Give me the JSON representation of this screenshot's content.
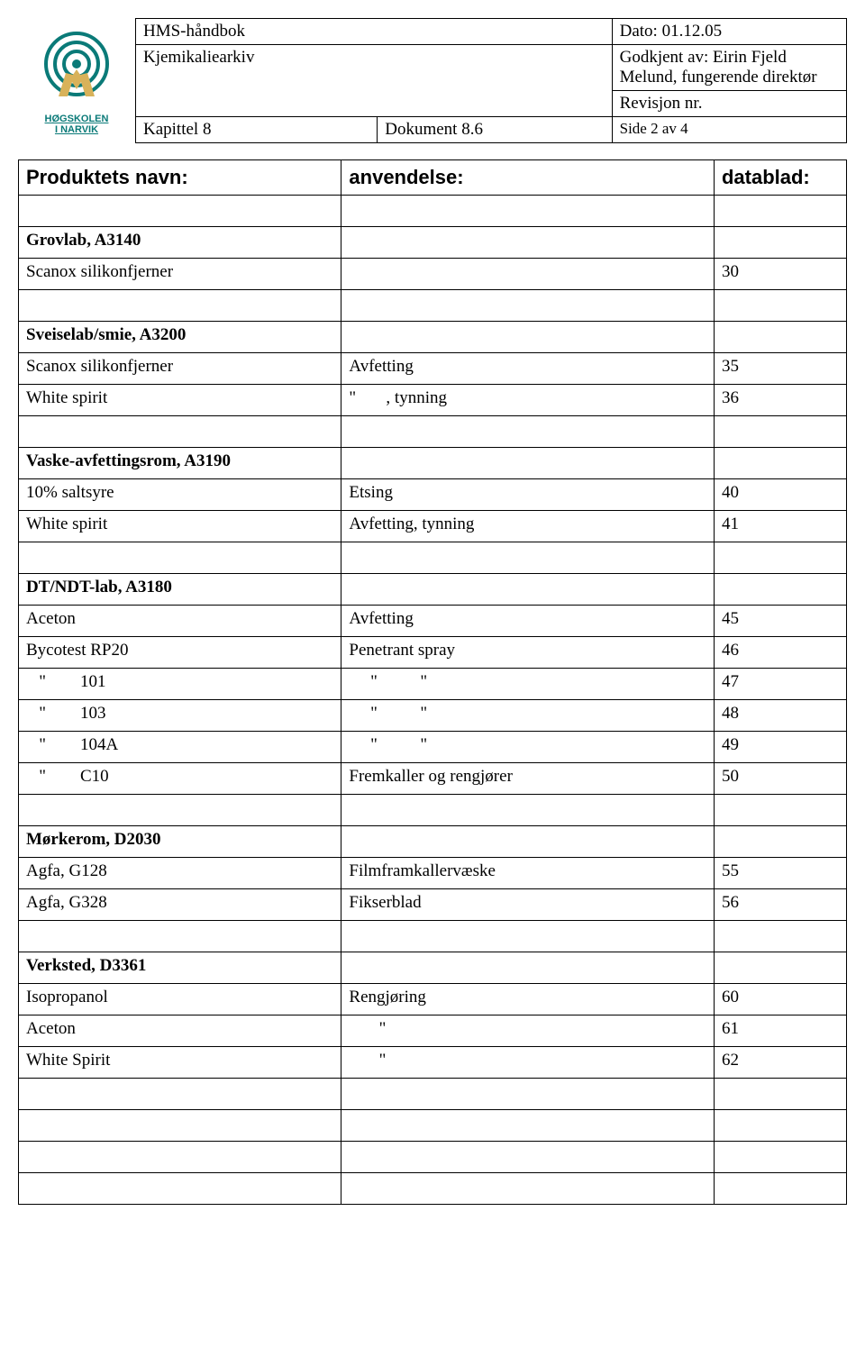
{
  "header": {
    "title": "HMS-håndbok",
    "date_label": "Dato: 01.12.05",
    "subtitle": "Kjemikaliearkiv",
    "approved_by": "Godkjent av: Eirin Fjeld Melund, fungerende direktør",
    "revision": "Revisjon nr.",
    "chapter": "Kapittel 8",
    "document": "Dokument 8.6",
    "page": "Side 2 av 4"
  },
  "logo": {
    "line1": "HØGSKOLEN",
    "line2": "I NARVIK",
    "stroke": "#0a7a78",
    "fill": "#0a7a78",
    "figure_fill": "#d8b25a"
  },
  "columns": {
    "name": "Produktets navn:",
    "use": "anvendelse:",
    "data": "datablad:"
  },
  "sections": [
    {
      "title": "Grovlab, A3140",
      "rows": [
        {
          "name": "Scanox silikonfjerner",
          "use": "",
          "data": "30"
        }
      ]
    },
    {
      "title": "Sveiselab/smie, A3200",
      "rows": [
        {
          "name": "Scanox silikonfjerner",
          "use": "Avfetting",
          "data": "35"
        },
        {
          "name": "White spirit",
          "use": "\"       , tynning",
          "data": "36"
        }
      ]
    },
    {
      "title": "Vaske-avfettingsrom, A3190",
      "rows": [
        {
          "name": "10% saltsyre",
          "use": "Etsing",
          "data": "40"
        },
        {
          "name": "White spirit",
          "use": "Avfetting, tynning",
          "data": "41"
        }
      ]
    },
    {
      "title": "DT/NDT-lab, A3180",
      "rows": [
        {
          "name": "Aceton",
          "use": "Avfetting",
          "data": "45"
        },
        {
          "name": "Bycotest RP20",
          "use": "Penetrant spray",
          "data": "46"
        },
        {
          "name": "   \"        101",
          "use": "     \"          \"",
          "data": "47"
        },
        {
          "name": "   \"        103",
          "use": "     \"          \"",
          "data": "48"
        },
        {
          "name": "   \"        104A",
          "use": "     \"          \"",
          "data": "49"
        },
        {
          "name": "   \"        C10",
          "use": "Fremkaller og rengjører",
          "data": "50"
        }
      ]
    },
    {
      "title": "Mørkerom, D2030",
      "rows": [
        {
          "name": "Agfa, G128",
          "use": "Filmframkallervæske",
          "data": "55"
        },
        {
          "name": "Agfa, G328",
          "use": "Fikserblad",
          "data": "56"
        }
      ]
    },
    {
      "title": "Verksted, D3361",
      "rows": [
        {
          "name": "Isopropanol",
          "use": "Rengjøring",
          "data": "60"
        },
        {
          "name": "Aceton",
          "use": "       \"",
          "data": "61"
        },
        {
          "name": "White Spirit",
          "use": "       \"",
          "data": "62"
        }
      ]
    }
  ],
  "trailing_empty_rows": 4
}
